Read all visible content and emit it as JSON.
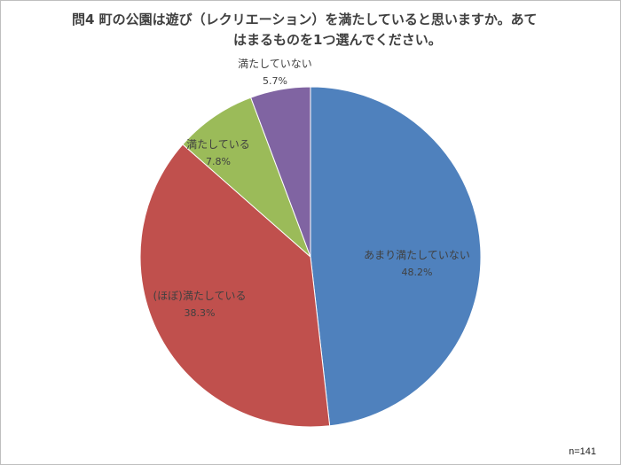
{
  "title": {
    "line1": "問4  町の公園は遊び（レクリエーション）を満たしていると思いますか。あて",
    "line2": "はまるものを1つ選んでください。"
  },
  "note": "n=141",
  "chart_data": {
    "type": "pie",
    "title": "問4  町の公園は遊び（レクリエーション）を満たしていると思いますか。あてはまるものを1つ選んでください。",
    "slices": [
      {
        "label": "あまり満たしていない",
        "value": 48.2,
        "value_label": "48.2%",
        "color": "#4f81bd"
      },
      {
        "label": "(ほぼ)満たしている",
        "value": 38.3,
        "value_label": "38.3%",
        "color": "#c0504d"
      },
      {
        "label": "満たしている",
        "value": 7.8,
        "value_label": "7.8%",
        "color": "#9bbb59"
      },
      {
        "label": "満たしていない",
        "value": 5.7,
        "value_label": "5.7%",
        "color": "#8064a2"
      }
    ],
    "start_angle": "12 o'clock",
    "direction": "clockwise",
    "legend": "none",
    "note": "n=141"
  }
}
